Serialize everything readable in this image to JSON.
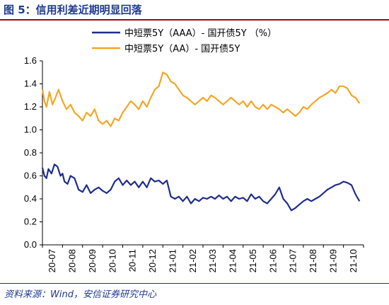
{
  "header": {
    "title": "图 5：信用利差近期明显回落"
  },
  "footer": {
    "source": "资料来源：Wind，安信证券研究中心"
  },
  "chart_data": {
    "type": "line",
    "title": "信用利差近期明显回落",
    "xlabel": "",
    "ylabel": "",
    "ylim": [
      0.0,
      1.6
    ],
    "yticks": [
      "0.0",
      "0.2",
      "0.4",
      "0.6",
      "0.8",
      "1.0",
      "1.2",
      "1.4",
      "1.6"
    ],
    "xticks": [
      "20-07",
      "20-08",
      "20-09",
      "20-10",
      "20-11",
      "20-12",
      "21-01",
      "21-02",
      "21-03",
      "21-04",
      "21-05",
      "21-06",
      "21-07",
      "21-08",
      "21-09",
      "21-10"
    ],
    "legend_position": "top",
    "grid": false,
    "x_unit": "month index from 20-07 (0 = 2020-07)",
    "series": [
      {
        "name": "中短票5Y（AAA）- 国开债5Y （%）",
        "color": "#1f2d8f",
        "x": [
          0.0,
          0.1,
          0.2,
          0.3,
          0.45,
          0.6,
          0.75,
          0.9,
          1.0,
          1.1,
          1.25,
          1.4,
          1.6,
          1.8,
          2.0,
          2.2,
          2.4,
          2.6,
          2.8,
          3.0,
          3.2,
          3.4,
          3.6,
          3.8,
          4.0,
          4.2,
          4.4,
          4.6,
          4.8,
          5.0,
          5.2,
          5.4,
          5.6,
          5.8,
          6.0,
          6.2,
          6.4,
          6.6,
          6.8,
          7.0,
          7.2,
          7.4,
          7.6,
          7.8,
          8.0,
          8.2,
          8.4,
          8.6,
          8.8,
          9.0,
          9.2,
          9.4,
          9.6,
          9.8,
          10.0,
          10.2,
          10.4,
          10.6,
          10.8,
          11.0,
          11.2,
          11.4,
          11.6,
          11.8,
          12.0,
          12.2,
          12.4,
          12.6,
          12.8,
          13.0,
          13.2,
          13.4,
          13.6,
          13.8,
          14.0,
          14.2,
          14.4,
          14.6,
          14.8,
          15.0,
          15.2,
          15.4,
          15.6,
          15.8
        ],
        "values": [
          0.67,
          0.6,
          0.58,
          0.66,
          0.62,
          0.7,
          0.68,
          0.6,
          0.62,
          0.55,
          0.53,
          0.6,
          0.58,
          0.48,
          0.46,
          0.52,
          0.45,
          0.48,
          0.5,
          0.47,
          0.45,
          0.48,
          0.55,
          0.58,
          0.52,
          0.56,
          0.52,
          0.55,
          0.5,
          0.55,
          0.5,
          0.58,
          0.55,
          0.56,
          0.53,
          0.56,
          0.42,
          0.4,
          0.42,
          0.38,
          0.42,
          0.36,
          0.4,
          0.38,
          0.41,
          0.4,
          0.42,
          0.4,
          0.43,
          0.4,
          0.42,
          0.38,
          0.42,
          0.4,
          0.41,
          0.38,
          0.44,
          0.4,
          0.42,
          0.38,
          0.36,
          0.4,
          0.44,
          0.5,
          0.4,
          0.36,
          0.3,
          0.32,
          0.35,
          0.38,
          0.4,
          0.38,
          0.4,
          0.42,
          0.45,
          0.48,
          0.5,
          0.52,
          0.53,
          0.55,
          0.54,
          0.52,
          0.44,
          0.38
        ]
      },
      {
        "name": "中短票5Y（AA）- 国开债5Y",
        "color": "#f5a623",
        "x": [
          0.0,
          0.1,
          0.2,
          0.35,
          0.5,
          0.65,
          0.8,
          1.0,
          1.2,
          1.4,
          1.6,
          1.8,
          2.0,
          2.2,
          2.4,
          2.6,
          2.8,
          3.0,
          3.2,
          3.4,
          3.6,
          3.8,
          4.0,
          4.2,
          4.4,
          4.6,
          4.8,
          5.0,
          5.2,
          5.4,
          5.6,
          5.8,
          6.0,
          6.2,
          6.4,
          6.6,
          6.8,
          7.0,
          7.2,
          7.4,
          7.6,
          7.8,
          8.0,
          8.2,
          8.4,
          8.6,
          8.8,
          9.0,
          9.2,
          9.4,
          9.6,
          9.8,
          10.0,
          10.2,
          10.4,
          10.6,
          10.8,
          11.0,
          11.2,
          11.4,
          11.6,
          11.8,
          12.0,
          12.2,
          12.4,
          12.6,
          12.8,
          13.0,
          13.2,
          13.4,
          13.6,
          13.8,
          14.0,
          14.2,
          14.4,
          14.6,
          14.8,
          15.0,
          15.2,
          15.4,
          15.6,
          15.8
        ],
        "values": [
          1.35,
          1.25,
          1.2,
          1.33,
          1.22,
          1.28,
          1.35,
          1.25,
          1.18,
          1.22,
          1.15,
          1.12,
          1.08,
          1.15,
          1.12,
          1.18,
          1.08,
          1.05,
          1.08,
          1.03,
          1.1,
          1.08,
          1.15,
          1.2,
          1.25,
          1.22,
          1.18,
          1.25,
          1.2,
          1.28,
          1.35,
          1.38,
          1.5,
          1.48,
          1.42,
          1.4,
          1.35,
          1.3,
          1.28,
          1.25,
          1.22,
          1.25,
          1.28,
          1.25,
          1.3,
          1.28,
          1.25,
          1.22,
          1.25,
          1.28,
          1.25,
          1.22,
          1.25,
          1.2,
          1.25,
          1.2,
          1.18,
          1.22,
          1.18,
          1.22,
          1.2,
          1.18,
          1.15,
          1.18,
          1.15,
          1.12,
          1.15,
          1.2,
          1.18,
          1.22,
          1.25,
          1.28,
          1.3,
          1.32,
          1.35,
          1.32,
          1.38,
          1.38,
          1.36,
          1.3,
          1.28,
          1.23
        ]
      }
    ]
  }
}
